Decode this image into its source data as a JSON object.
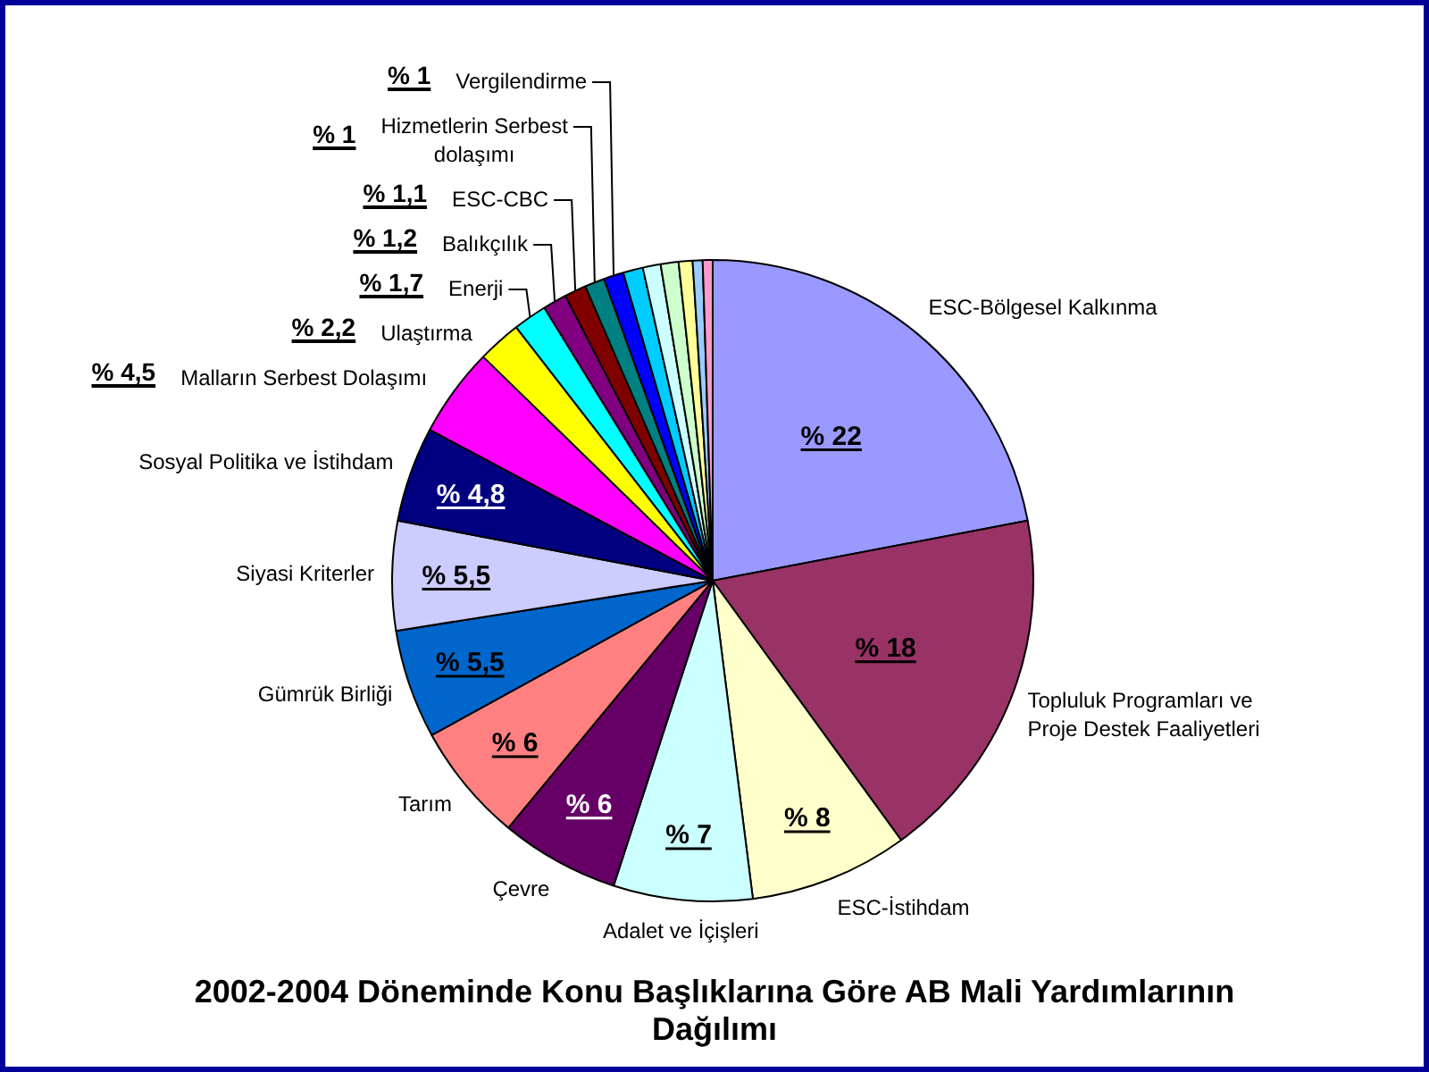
{
  "chart_data": {
    "type": "pie",
    "title": "2002-2004 Döneminde Konu Başlıklarına Göre AB Mali Yardımlarının Dağılımı",
    "categories": [
      "ESC-Bölgesel Kalkınma",
      "Topluluk Programları ve Proje Destek Faaliyetleri",
      "ESC-İstihdam",
      "Adalet ve İçişleri",
      "Çevre",
      "Tarım",
      "Gümrük Birliği",
      "Siyasi Kriterler",
      "Sosyal Politika ve İstihdam",
      "Malların Serbest Dolaşımı",
      "Ulaştırma",
      "Enerji",
      "Balıkçılık",
      "ESC-CBC",
      "Hizmetlerin Serbest dolaşımı",
      "Vergilendirme",
      null,
      null,
      null,
      null,
      null,
      null
    ],
    "values": [
      22,
      18,
      8,
      7,
      6,
      6,
      5.5,
      5.5,
      4.8,
      4.5,
      2.2,
      1.7,
      1.2,
      1.1,
      1,
      1,
      1.0,
      0.9,
      0.9,
      0.7,
      0.5,
      0.5
    ],
    "colors": [
      "#9999ff",
      "#993366",
      "#ffffcc",
      "#ccffff",
      "#660066",
      "#ff8080",
      "#0066cc",
      "#ccccff",
      "#000080",
      "#ff00ff",
      "#ffff00",
      "#00ffff",
      "#800080",
      "#800000",
      "#008080",
      "#0000ff",
      "#00ccff",
      "#ccffff",
      "#ccffcc",
      "#ffff99",
      "#99ccff",
      "#ff99cc"
    ],
    "value_labels": [
      "% 22",
      "% 18",
      "% 8",
      "% 7",
      "% 6",
      "% 6",
      "% 5,5",
      "% 5,5",
      "% 4,8",
      "% 4,5",
      "% 2,2",
      "% 1,7",
      "% 1,2",
      "% 1,1",
      "% 1",
      "% 1",
      null,
      null,
      null,
      null,
      null,
      null
    ]
  }
}
